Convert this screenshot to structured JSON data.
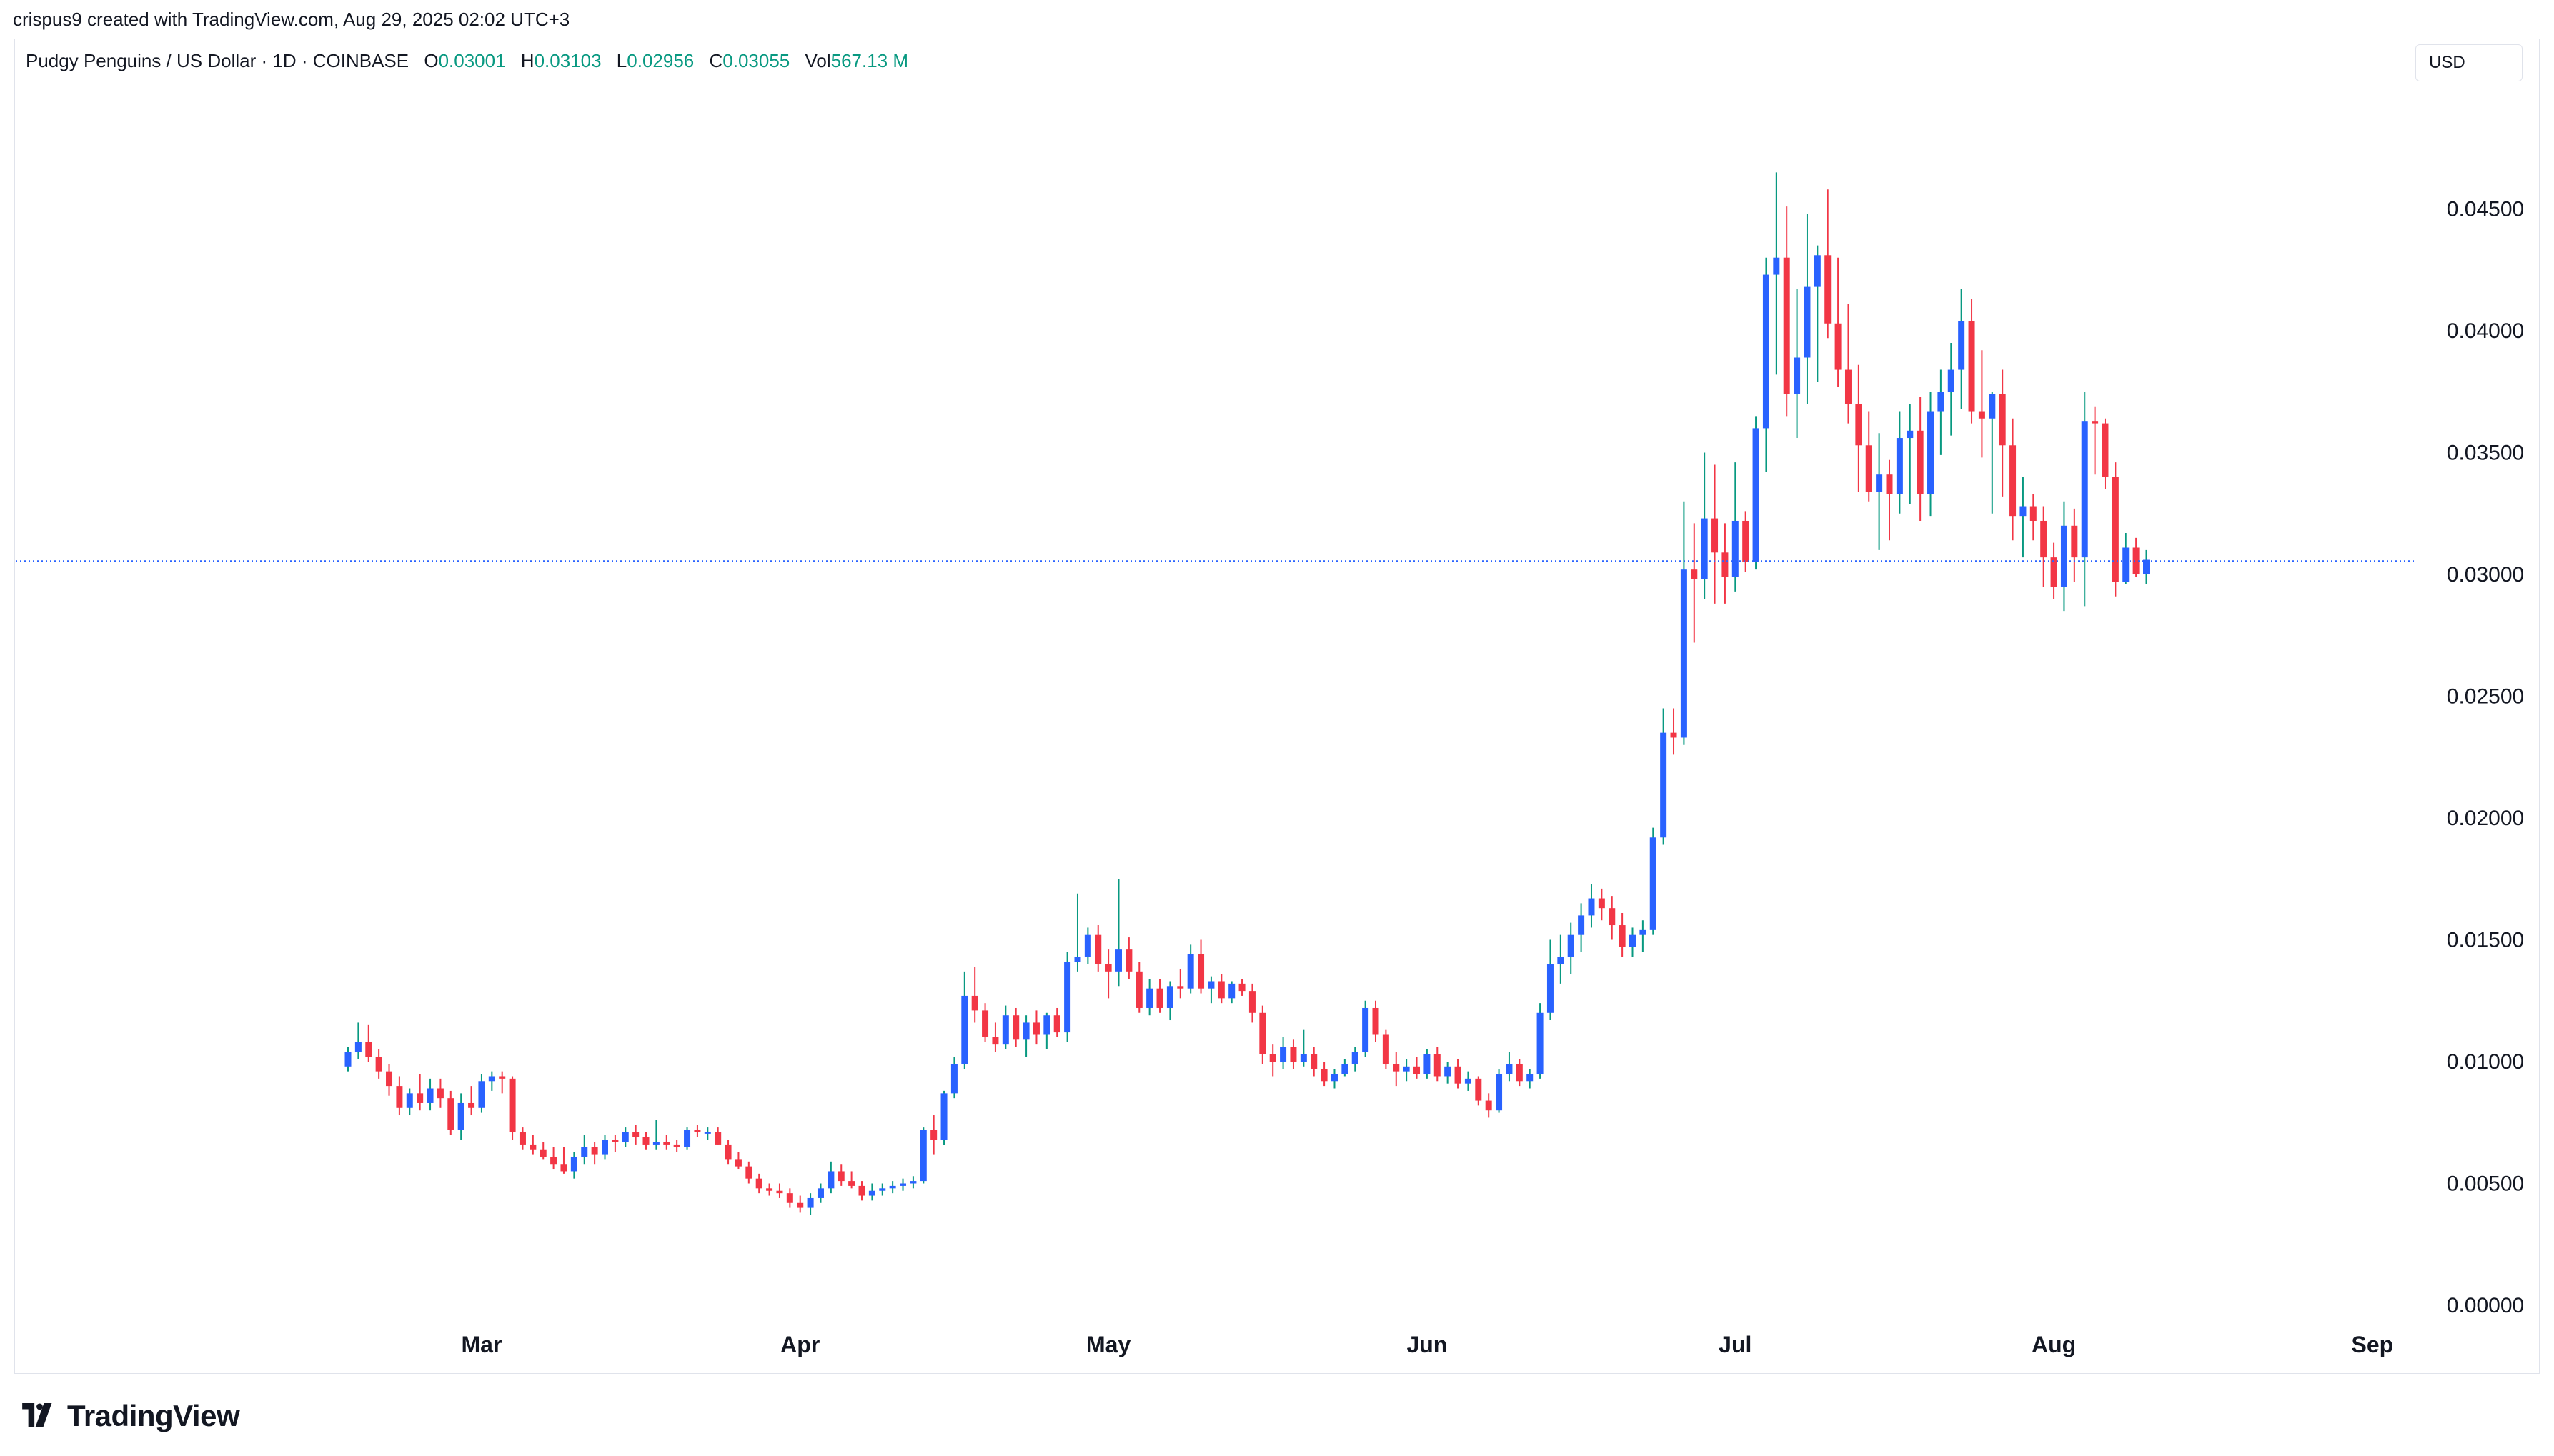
{
  "header": {
    "caption": "crispus9 created with TradingView.com, Aug 29, 2025 02:02 UTC+3"
  },
  "legend": {
    "symbol": "Pudgy Penguins / US Dollar · 1D · COINBASE",
    "open_label": "O",
    "open": "0.03001",
    "high_label": "H",
    "high": "0.03103",
    "low_label": "L",
    "low": "0.02956",
    "close_label": "C",
    "close": "0.03055",
    "vol_label": "Vol",
    "vol": "567.13 M"
  },
  "currency_button": "USD",
  "footer": {
    "brand": "TradingView"
  },
  "colors": {
    "up": "#2962ff",
    "down": "#f23645",
    "wick_up": "#089981",
    "grid": "#e0e3eb",
    "text": "#131722"
  },
  "chart_data": {
    "type": "candlestick",
    "title": "Pudgy Penguins / US Dollar · 1D · COINBASE",
    "ylabel": "USD",
    "ylim": [
      0,
      0.05
    ],
    "y_ticks": [
      "0.00000",
      "0.00500",
      "0.01000",
      "0.01500",
      "0.02000",
      "0.02500",
      "0.03000",
      "0.03500",
      "0.04000",
      "0.04500"
    ],
    "x_ticks": [
      {
        "label": "Mar",
        "index": 13
      },
      {
        "label": "Apr",
        "index": 44
      },
      {
        "label": "May",
        "index": 74
      },
      {
        "label": "Jun",
        "index": 105
      },
      {
        "label": "Jul",
        "index": 135
      },
      {
        "label": "Aug",
        "index": 166
      },
      {
        "label": "Sep",
        "index": 197
      }
    ],
    "start_date": "2025-02-16",
    "last_price": 0.03055,
    "candles": [
      [
        0.0098,
        0.0106,
        0.0096,
        0.0104
      ],
      [
        0.0104,
        0.0116,
        0.0101,
        0.0108
      ],
      [
        0.0108,
        0.0115,
        0.01,
        0.0102
      ],
      [
        0.0102,
        0.0105,
        0.0093,
        0.0096
      ],
      [
        0.0096,
        0.0099,
        0.0086,
        0.009
      ],
      [
        0.009,
        0.0094,
        0.0078,
        0.0081
      ],
      [
        0.0081,
        0.0089,
        0.0078,
        0.0087
      ],
      [
        0.0087,
        0.0095,
        0.008,
        0.0083
      ],
      [
        0.0083,
        0.0093,
        0.008,
        0.0089
      ],
      [
        0.0089,
        0.0093,
        0.0081,
        0.0085
      ],
      [
        0.0085,
        0.0088,
        0.007,
        0.0072
      ],
      [
        0.0072,
        0.0087,
        0.0068,
        0.0083
      ],
      [
        0.0083,
        0.009,
        0.0078,
        0.0081
      ],
      [
        0.0081,
        0.0095,
        0.0079,
        0.0092
      ],
      [
        0.0092,
        0.0096,
        0.0088,
        0.0094
      ],
      [
        0.0094,
        0.0096,
        0.0087,
        0.0093
      ],
      [
        0.0093,
        0.0094,
        0.0068,
        0.0071
      ],
      [
        0.0071,
        0.0073,
        0.0064,
        0.0066
      ],
      [
        0.0066,
        0.007,
        0.0062,
        0.0064
      ],
      [
        0.0064,
        0.0067,
        0.006,
        0.0061
      ],
      [
        0.0061,
        0.0065,
        0.0056,
        0.0058
      ],
      [
        0.0058,
        0.0065,
        0.0054,
        0.0055
      ],
      [
        0.0055,
        0.0063,
        0.0052,
        0.0061
      ],
      [
        0.0061,
        0.007,
        0.0058,
        0.0065
      ],
      [
        0.0065,
        0.0067,
        0.0058,
        0.0062
      ],
      [
        0.0062,
        0.007,
        0.006,
        0.0068
      ],
      [
        0.0068,
        0.007,
        0.0063,
        0.0067
      ],
      [
        0.0067,
        0.0073,
        0.0065,
        0.0071
      ],
      [
        0.0071,
        0.0074,
        0.0066,
        0.0069
      ],
      [
        0.0069,
        0.0071,
        0.0064,
        0.0066
      ],
      [
        0.0066,
        0.0076,
        0.0064,
        0.0067
      ],
      [
        0.0067,
        0.007,
        0.0064,
        0.0066
      ],
      [
        0.0066,
        0.0068,
        0.0063,
        0.0065
      ],
      [
        0.0065,
        0.0073,
        0.0064,
        0.0072
      ],
      [
        0.0072,
        0.0074,
        0.0069,
        0.0071
      ],
      [
        0.0071,
        0.0073,
        0.0068,
        0.0071
      ],
      [
        0.0071,
        0.0073,
        0.0066,
        0.0066
      ],
      [
        0.0066,
        0.0068,
        0.0058,
        0.006
      ],
      [
        0.006,
        0.0063,
        0.0056,
        0.0057
      ],
      [
        0.0057,
        0.0059,
        0.005,
        0.0052
      ],
      [
        0.0052,
        0.0054,
        0.0046,
        0.0048
      ],
      [
        0.0048,
        0.005,
        0.0045,
        0.0047
      ],
      [
        0.0047,
        0.005,
        0.0044,
        0.0046
      ],
      [
        0.0046,
        0.0048,
        0.004,
        0.0042
      ],
      [
        0.0042,
        0.0045,
        0.0038,
        0.004
      ],
      [
        0.004,
        0.0046,
        0.0037,
        0.0044
      ],
      [
        0.0044,
        0.005,
        0.0042,
        0.0048
      ],
      [
        0.0048,
        0.0059,
        0.0046,
        0.0055
      ],
      [
        0.0055,
        0.0058,
        0.0049,
        0.0051
      ],
      [
        0.0051,
        0.0055,
        0.0048,
        0.0049
      ],
      [
        0.0049,
        0.0051,
        0.0043,
        0.0045
      ],
      [
        0.0045,
        0.005,
        0.0043,
        0.0047
      ],
      [
        0.0047,
        0.005,
        0.0045,
        0.0048
      ],
      [
        0.0048,
        0.0051,
        0.0046,
        0.0049
      ],
      [
        0.0049,
        0.0052,
        0.0047,
        0.005
      ],
      [
        0.005,
        0.0053,
        0.0048,
        0.0051
      ],
      [
        0.0051,
        0.0073,
        0.005,
        0.0072
      ],
      [
        0.0072,
        0.0078,
        0.0062,
        0.0068
      ],
      [
        0.0068,
        0.0088,
        0.0066,
        0.0087
      ],
      [
        0.0087,
        0.0102,
        0.0085,
        0.0099
      ],
      [
        0.0099,
        0.0137,
        0.0097,
        0.0127
      ],
      [
        0.0127,
        0.0139,
        0.0116,
        0.0121
      ],
      [
        0.0121,
        0.0124,
        0.0108,
        0.011
      ],
      [
        0.011,
        0.0116,
        0.0104,
        0.0107
      ],
      [
        0.0107,
        0.0123,
        0.0105,
        0.0119
      ],
      [
        0.0119,
        0.0122,
        0.0106,
        0.0109
      ],
      [
        0.0109,
        0.0119,
        0.0102,
        0.0116
      ],
      [
        0.0116,
        0.0121,
        0.0107,
        0.0111
      ],
      [
        0.0111,
        0.012,
        0.0105,
        0.0119
      ],
      [
        0.0119,
        0.0122,
        0.011,
        0.0112
      ],
      [
        0.0112,
        0.0145,
        0.0108,
        0.0141
      ],
      [
        0.0141,
        0.0169,
        0.0137,
        0.0143
      ],
      [
        0.0143,
        0.0155,
        0.014,
        0.0152
      ],
      [
        0.0152,
        0.0156,
        0.0137,
        0.014
      ],
      [
        0.014,
        0.0146,
        0.0126,
        0.0137
      ],
      [
        0.0137,
        0.0175,
        0.0131,
        0.0146
      ],
      [
        0.0146,
        0.0151,
        0.0134,
        0.0137
      ],
      [
        0.0137,
        0.0141,
        0.012,
        0.0122
      ],
      [
        0.0122,
        0.0134,
        0.0119,
        0.013
      ],
      [
        0.013,
        0.0134,
        0.012,
        0.0122
      ],
      [
        0.0122,
        0.0133,
        0.0117,
        0.0131
      ],
      [
        0.0131,
        0.0138,
        0.0126,
        0.013
      ],
      [
        0.013,
        0.0148,
        0.0128,
        0.0144
      ],
      [
        0.0144,
        0.015,
        0.0128,
        0.013
      ],
      [
        0.013,
        0.0135,
        0.0124,
        0.0133
      ],
      [
        0.0133,
        0.0136,
        0.0124,
        0.0126
      ],
      [
        0.0126,
        0.0133,
        0.0124,
        0.0132
      ],
      [
        0.0132,
        0.0134,
        0.0127,
        0.0129
      ],
      [
        0.0129,
        0.0132,
        0.0116,
        0.012
      ],
      [
        0.012,
        0.0123,
        0.0099,
        0.0103
      ],
      [
        0.0103,
        0.0107,
        0.0094,
        0.01
      ],
      [
        0.01,
        0.011,
        0.0097,
        0.0106
      ],
      [
        0.0106,
        0.0109,
        0.0097,
        0.01
      ],
      [
        0.01,
        0.0113,
        0.0098,
        0.0103
      ],
      [
        0.0103,
        0.0106,
        0.0094,
        0.0097
      ],
      [
        0.0097,
        0.01,
        0.009,
        0.0092
      ],
      [
        0.0092,
        0.0097,
        0.0089,
        0.0095
      ],
      [
        0.0095,
        0.0101,
        0.0094,
        0.0099
      ],
      [
        0.0099,
        0.0106,
        0.0096,
        0.0104
      ],
      [
        0.0104,
        0.0125,
        0.0102,
        0.0122
      ],
      [
        0.0122,
        0.0125,
        0.0108,
        0.0111
      ],
      [
        0.0111,
        0.0113,
        0.0097,
        0.0099
      ],
      [
        0.0099,
        0.0104,
        0.009,
        0.0096
      ],
      [
        0.0096,
        0.0101,
        0.0092,
        0.0098
      ],
      [
        0.0098,
        0.0102,
        0.0093,
        0.0095
      ],
      [
        0.0095,
        0.0105,
        0.0093,
        0.0103
      ],
      [
        0.0103,
        0.0106,
        0.0092,
        0.0094
      ],
      [
        0.0094,
        0.01,
        0.0091,
        0.0098
      ],
      [
        0.0098,
        0.0101,
        0.0089,
        0.0091
      ],
      [
        0.0091,
        0.0096,
        0.0088,
        0.0093
      ],
      [
        0.0093,
        0.0094,
        0.0082,
        0.0084
      ],
      [
        0.0084,
        0.0087,
        0.0077,
        0.008
      ],
      [
        0.008,
        0.0097,
        0.0079,
        0.0095
      ],
      [
        0.0095,
        0.0104,
        0.0092,
        0.0099
      ],
      [
        0.0099,
        0.0101,
        0.009,
        0.0092
      ],
      [
        0.0092,
        0.0097,
        0.0089,
        0.0095
      ],
      [
        0.0095,
        0.0124,
        0.0093,
        0.012
      ],
      [
        0.012,
        0.015,
        0.0117,
        0.014
      ],
      [
        0.014,
        0.0152,
        0.0132,
        0.0143
      ],
      [
        0.0143,
        0.0157,
        0.0136,
        0.0152
      ],
      [
        0.0152,
        0.0165,
        0.0145,
        0.016
      ],
      [
        0.016,
        0.0173,
        0.0155,
        0.0167
      ],
      [
        0.0167,
        0.0171,
        0.0158,
        0.0163
      ],
      [
        0.0163,
        0.0168,
        0.015,
        0.0156
      ],
      [
        0.0156,
        0.0161,
        0.0143,
        0.0147
      ],
      [
        0.0147,
        0.0155,
        0.0143,
        0.0152
      ],
      [
        0.0152,
        0.0158,
        0.0145,
        0.0154
      ],
      [
        0.0154,
        0.0196,
        0.0152,
        0.0192
      ],
      [
        0.0192,
        0.0245,
        0.0189,
        0.0235
      ],
      [
        0.0235,
        0.0245,
        0.0226,
        0.0233
      ],
      [
        0.0233,
        0.033,
        0.023,
        0.0302
      ],
      [
        0.0302,
        0.0321,
        0.0272,
        0.0298
      ],
      [
        0.0298,
        0.035,
        0.029,
        0.0323
      ],
      [
        0.0323,
        0.0345,
        0.0288,
        0.0309
      ],
      [
        0.0309,
        0.0321,
        0.0288,
        0.0299
      ],
      [
        0.0299,
        0.0346,
        0.0293,
        0.0322
      ],
      [
        0.0322,
        0.0326,
        0.0301,
        0.0305
      ],
      [
        0.0305,
        0.0365,
        0.0302,
        0.036
      ],
      [
        0.036,
        0.043,
        0.0342,
        0.0423
      ],
      [
        0.0423,
        0.0465,
        0.0382,
        0.043
      ],
      [
        0.043,
        0.0451,
        0.0365,
        0.0374
      ],
      [
        0.0374,
        0.0417,
        0.0356,
        0.0389
      ],
      [
        0.0389,
        0.0448,
        0.037,
        0.0418
      ],
      [
        0.0418,
        0.0435,
        0.0379,
        0.0431
      ],
      [
        0.0431,
        0.0458,
        0.0397,
        0.0403
      ],
      [
        0.0403,
        0.043,
        0.0377,
        0.0384
      ],
      [
        0.0384,
        0.0411,
        0.0362,
        0.037
      ],
      [
        0.037,
        0.0386,
        0.0334,
        0.0353
      ],
      [
        0.0353,
        0.0367,
        0.033,
        0.0334
      ],
      [
        0.0334,
        0.0358,
        0.031,
        0.0341
      ],
      [
        0.0341,
        0.0347,
        0.0314,
        0.0333
      ],
      [
        0.0333,
        0.0367,
        0.0325,
        0.0356
      ],
      [
        0.0356,
        0.037,
        0.0329,
        0.0359
      ],
      [
        0.0359,
        0.0373,
        0.0322,
        0.0333
      ],
      [
        0.0333,
        0.0375,
        0.0324,
        0.0367
      ],
      [
        0.0367,
        0.0384,
        0.0349,
        0.0375
      ],
      [
        0.0375,
        0.0395,
        0.0357,
        0.0384
      ],
      [
        0.0384,
        0.0417,
        0.0368,
        0.0404
      ],
      [
        0.0404,
        0.0413,
        0.0362,
        0.0367
      ],
      [
        0.0367,
        0.0392,
        0.0348,
        0.0364
      ],
      [
        0.0364,
        0.0375,
        0.0325,
        0.0374
      ],
      [
        0.0374,
        0.0384,
        0.0332,
        0.0353
      ],
      [
        0.0353,
        0.0364,
        0.0314,
        0.0324
      ],
      [
        0.0324,
        0.034,
        0.0307,
        0.0328
      ],
      [
        0.0328,
        0.0333,
        0.0314,
        0.0322
      ],
      [
        0.0322,
        0.0328,
        0.0295,
        0.0307
      ],
      [
        0.0307,
        0.0313,
        0.029,
        0.0295
      ],
      [
        0.0295,
        0.033,
        0.0285,
        0.032
      ],
      [
        0.032,
        0.0327,
        0.0297,
        0.0307
      ],
      [
        0.0307,
        0.0375,
        0.0287,
        0.0363
      ],
      [
        0.0363,
        0.0369,
        0.0341,
        0.0362
      ],
      [
        0.0362,
        0.0364,
        0.0335,
        0.034
      ],
      [
        0.034,
        0.0346,
        0.0291,
        0.0297
      ],
      [
        0.0297,
        0.0317,
        0.0296,
        0.0311
      ],
      [
        0.0311,
        0.0315,
        0.0299,
        0.03
      ],
      [
        0.03,
        0.031,
        0.0296,
        0.0306
      ]
    ]
  }
}
